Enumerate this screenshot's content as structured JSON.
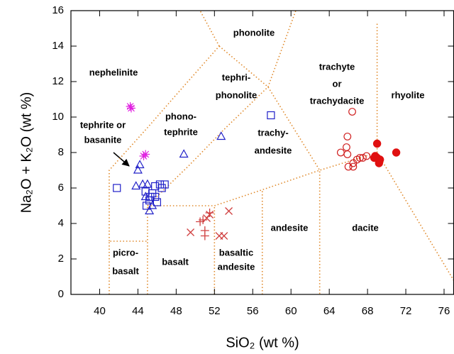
{
  "chart_data": {
    "type": "scatter",
    "xlabel": "SiO₂ (wt %)",
    "ylabel": "Na₂O + K₂O (wt %)",
    "xlim": [
      37,
      77
    ],
    "ylim": [
      0,
      16
    ],
    "xticks": [
      40,
      44,
      48,
      52,
      56,
      60,
      64,
      68,
      72,
      76
    ],
    "yticks": [
      0,
      2,
      4,
      6,
      8,
      10,
      12,
      14,
      16
    ],
    "boundary_color": "#e08a2c",
    "boundaries": [
      {
        "x": [
          41,
          41,
          45
        ],
        "y": [
          0,
          3,
          3
        ]
      },
      {
        "x": [
          45,
          45
        ],
        "y": [
          0,
          5
        ]
      },
      {
        "x": [
          41,
          41,
          45,
          48.4,
          52.5
        ],
        "y": [
          3,
          7,
          9.4,
          11.5,
          14
        ]
      },
      {
        "x": [
          52.5,
          50.5
        ],
        "y": [
          14,
          16
        ]
      },
      {
        "x": [
          45,
          49.4,
          53,
          57.6,
          60.5
        ],
        "y": [
          5,
          7.3,
          9.3,
          11.7,
          16
        ]
      },
      {
        "x": [
          52,
          52
        ],
        "y": [
          0,
          5
        ]
      },
      {
        "x": [
          57,
          57
        ],
        "y": [
          0,
          5.9
        ]
      },
      {
        "x": [
          52.5,
          57.6,
          63,
          63
        ],
        "y": [
          14,
          11.7,
          7,
          0
        ]
      },
      {
        "x": [
          45,
          52,
          57,
          63,
          69,
          77
        ],
        "y": [
          5,
          5,
          5.9,
          7,
          8,
          0.8
        ]
      },
      {
        "x": [
          69,
          69
        ],
        "y": [
          8,
          15.3
        ]
      }
    ],
    "annotations": [
      [
        "phonolite"
      ],
      [
        "tephri-",
        "phonolite"
      ],
      [
        "nephelinite"
      ],
      [
        "trachyte",
        "or",
        "trachydacite"
      ],
      [
        "rhyolite"
      ],
      [
        "phono-",
        "tephrite"
      ],
      [
        "tephrite or",
        "basanite"
      ],
      [
        "trachy-",
        "andesite"
      ],
      [
        "andesite"
      ],
      [
        "dacite"
      ],
      [
        "basaltic",
        "andesite"
      ],
      [
        "basalt"
      ],
      [
        "picro-",
        "basalt"
      ]
    ],
    "series": [
      {
        "marker": "triangle",
        "color": "#2020c8",
        "x": [
          44,
          44.2,
          43.8,
          44.5,
          45,
          44.8,
          45.5,
          45.2,
          48.8,
          52.7
        ],
        "values": [
          7.0,
          7.3,
          6.1,
          6.2,
          6.2,
          5.5,
          5.0,
          4.7,
          7.9,
          8.9
        ]
      },
      {
        "marker": "square",
        "color": "#2020c8",
        "x": [
          41.8,
          57.9,
          44.8,
          45.2,
          45.8,
          46.3,
          46.5,
          45.5,
          46,
          45.3,
          46.8,
          44.9,
          45.8
        ],
        "values": [
          6.0,
          10.1,
          5.8,
          5.3,
          6.1,
          6.2,
          6.0,
          5.7,
          5.2,
          5.5,
          6.2,
          5.0,
          5.5
        ]
      },
      {
        "marker": "asterisk",
        "color": "#e020e0",
        "x": [
          43.2,
          43.3,
          44.8,
          44.6
        ],
        "values": [
          10.6,
          10.5,
          7.9,
          7.8
        ]
      },
      {
        "marker": "cross",
        "color": "#d04040",
        "x": [
          49.5,
          51.5,
          51.2,
          52.5,
          53,
          53.5
        ],
        "values": [
          3.5,
          4.5,
          4.3,
          3.3,
          3.3,
          4.7
        ]
      },
      {
        "marker": "plus",
        "color": "#d04040",
        "x": [
          50.5,
          51,
          51,
          51.5,
          50.8
        ],
        "values": [
          4.1,
          3.6,
          3.3,
          4.6,
          4.2
        ]
      },
      {
        "marker": "circle",
        "color": "#d02020",
        "x": [
          65.2,
          65.8,
          65.9,
          66.4,
          66.0,
          66.5,
          66.9,
          67.5,
          65.9,
          66.5,
          67.9,
          67.2
        ],
        "values": [
          8.0,
          8.3,
          8.9,
          10.3,
          7.2,
          7.4,
          7.6,
          7.7,
          7.9,
          7.2,
          7.8,
          7.7
        ]
      },
      {
        "marker": "disc",
        "color": "#e01010",
        "x": [
          69,
          68.8,
          69.2,
          69,
          68.7,
          71,
          69.3
        ],
        "values": [
          8.5,
          7.8,
          7.4,
          7.7,
          7.7,
          8.0,
          7.6
        ]
      }
    ]
  }
}
